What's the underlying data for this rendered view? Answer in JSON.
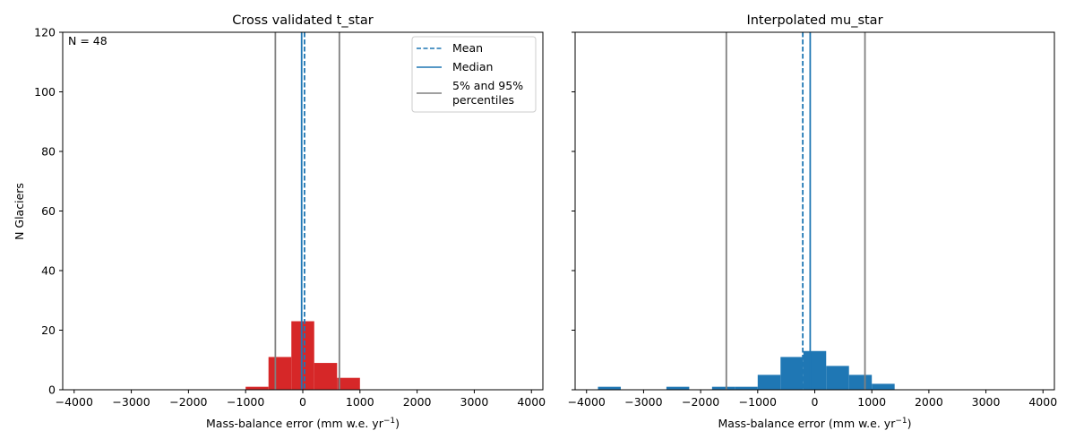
{
  "chart_data": [
    {
      "type": "bar",
      "title": "Cross validated t_star",
      "xlabel": "Mass-balance error (mm w.e. yr",
      "xlabel_sup": "−1",
      "xlabel_end": ")",
      "ylabel": "N Glaciers",
      "xlim": [
        -4200,
        4200
      ],
      "ylim": [
        0,
        120
      ],
      "xticks": [
        -4000,
        -3000,
        -2000,
        -1000,
        0,
        1000,
        2000,
        3000,
        4000
      ],
      "xtick_labels": [
        "−4000",
        "−3000",
        "−2000",
        "−1000",
        "0",
        "1000",
        "2000",
        "3000",
        "4000"
      ],
      "yticks": [
        0,
        20,
        40,
        60,
        80,
        100,
        120
      ],
      "ytick_labels": [
        "0",
        "20",
        "40",
        "60",
        "80",
        "100",
        "120"
      ],
      "bar_color": "#d62728",
      "bins": [
        {
          "x0": -1000,
          "x1": -600,
          "count": 1
        },
        {
          "x0": -600,
          "x1": -200,
          "count": 11
        },
        {
          "x0": -200,
          "x1": 200,
          "count": 23
        },
        {
          "x0": 200,
          "x1": 600,
          "count": 9
        },
        {
          "x0": 600,
          "x1": 1000,
          "count": 4
        }
      ],
      "mean": 30,
      "median": -20,
      "p5": -480,
      "p95": 640,
      "annotation": "N = 48",
      "legend": {
        "position": "top-right",
        "entries": [
          {
            "label": "Mean",
            "style": "dashed",
            "color": "#1f77b4"
          },
          {
            "label": "Median",
            "style": "solid",
            "color": "#1f77b4"
          },
          {
            "label": "5% and 95%",
            "label2": "percentiles",
            "style": "solid",
            "color": "#808080"
          }
        ]
      }
    },
    {
      "type": "bar",
      "title": "Interpolated mu_star",
      "xlabel": "Mass-balance error (mm w.e. yr",
      "xlabel_sup": "−1",
      "xlabel_end": ")",
      "xlim": [
        -4200,
        4200
      ],
      "ylim": [
        0,
        120
      ],
      "xticks": [
        -4000,
        -3000,
        -2000,
        -1000,
        0,
        1000,
        2000,
        3000,
        4000
      ],
      "xtick_labels": [
        "−4000",
        "−3000",
        "−2000",
        "−1000",
        "0",
        "1000",
        "2000",
        "3000",
        "4000"
      ],
      "yticks": [
        0,
        20,
        40,
        60,
        80,
        100,
        120
      ],
      "bar_color": "#1f77b4",
      "bins": [
        {
          "x0": -3800,
          "x1": -3400,
          "count": 1
        },
        {
          "x0": -2600,
          "x1": -2200,
          "count": 1
        },
        {
          "x0": -1800,
          "x1": -1400,
          "count": 1
        },
        {
          "x0": -1400,
          "x1": -1000,
          "count": 1
        },
        {
          "x0": -1000,
          "x1": -600,
          "count": 5
        },
        {
          "x0": -600,
          "x1": -200,
          "count": 11
        },
        {
          "x0": -200,
          "x1": 200,
          "count": 13
        },
        {
          "x0": 200,
          "x1": 600,
          "count": 8
        },
        {
          "x0": 600,
          "x1": 1000,
          "count": 5
        },
        {
          "x0": 1000,
          "x1": 1400,
          "count": 2
        }
      ],
      "mean": -210,
      "median": -80,
      "p5": -1550,
      "p95": 880
    }
  ]
}
